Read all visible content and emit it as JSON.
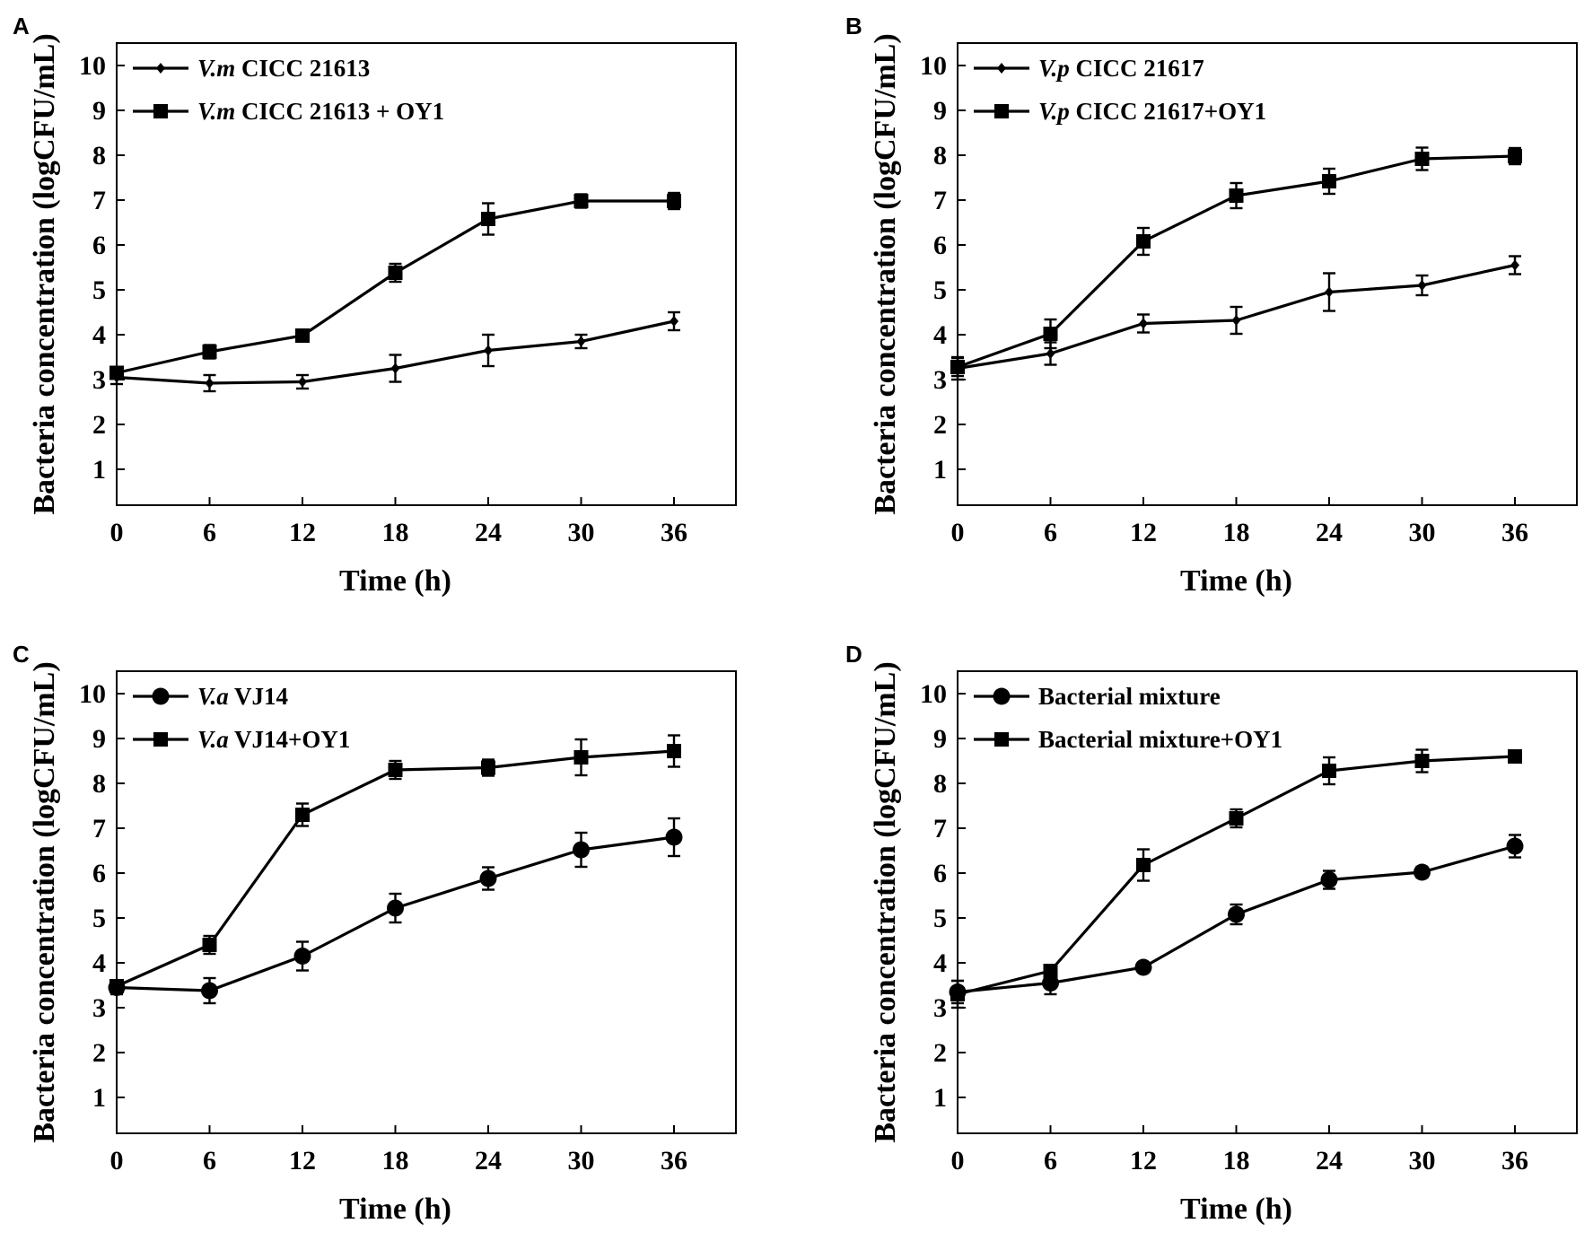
{
  "figure": {
    "background": "#ffffff",
    "ink": "#000000"
  },
  "chart_data": [
    {
      "panel": "A",
      "type": "line",
      "xlabel": "Time (h)",
      "ylabel": "Bacteria concentration  (logCFU/mL)",
      "x": [
        0,
        6,
        12,
        18,
        24,
        30,
        36
      ],
      "xticks": [
        "0",
        "6",
        "12",
        "18",
        "24",
        "30",
        "36"
      ],
      "yticks": [
        "1",
        "2",
        "3",
        "4",
        "5",
        "6",
        "7",
        "8",
        "9",
        "10"
      ],
      "xlim": [
        0,
        40
      ],
      "ylim": [
        0.2,
        10.5
      ],
      "legend_position": "top-left",
      "series": [
        {
          "name_italic": "V.m",
          "name_rest": " CICC 21613",
          "marker": "small-diamond",
          "values": [
            3.05,
            2.92,
            2.95,
            3.25,
            3.65,
            3.85,
            4.3
          ],
          "errors": [
            0.15,
            0.18,
            0.15,
            0.3,
            0.35,
            0.15,
            0.2
          ]
        },
        {
          "name_italic": "V.m",
          "name_rest": " CICC 21613 + OY1",
          "marker": "square",
          "values": [
            3.15,
            3.62,
            3.98,
            5.38,
            6.58,
            6.98,
            6.98
          ],
          "errors": [
            0.12,
            0.15,
            0.08,
            0.2,
            0.35,
            0.15,
            0.18
          ]
        }
      ]
    },
    {
      "panel": "B",
      "type": "line",
      "xlabel": "Time (h)",
      "ylabel": "Bacteria concentration  (logCFU/mL)",
      "x": [
        0,
        6,
        12,
        18,
        24,
        30,
        36
      ],
      "xticks": [
        "0",
        "6",
        "12",
        "18",
        "24",
        "30",
        "36"
      ],
      "yticks": [
        "1",
        "2",
        "3",
        "4",
        "5",
        "6",
        "7",
        "8",
        "9",
        "10"
      ],
      "xlim": [
        0,
        40
      ],
      "ylim": [
        0.2,
        10.5
      ],
      "legend_position": "top-left",
      "series": [
        {
          "name_italic": "V.p",
          "name_rest": " CICC 21617",
          "marker": "small-diamond",
          "values": [
            3.25,
            3.58,
            4.25,
            4.32,
            4.95,
            5.1,
            5.55
          ],
          "errors": [
            0.25,
            0.25,
            0.2,
            0.3,
            0.42,
            0.22,
            0.2
          ]
        },
        {
          "name_italic": "V.p",
          "name_rest": " CICC 21617+OY1",
          "marker": "square",
          "values": [
            3.28,
            4.02,
            6.08,
            7.1,
            7.42,
            7.92,
            7.98
          ],
          "errors": [
            0.2,
            0.32,
            0.3,
            0.28,
            0.28,
            0.25,
            0.18
          ]
        }
      ]
    },
    {
      "panel": "C",
      "type": "line",
      "xlabel": "Time (h)",
      "ylabel": "Bacteria concentration  (logCFU/mL)",
      "x": [
        0,
        6,
        12,
        18,
        24,
        30,
        36
      ],
      "xticks": [
        "0",
        "6",
        "12",
        "18",
        "24",
        "30",
        "36"
      ],
      "yticks": [
        "1",
        "2",
        "3",
        "4",
        "5",
        "6",
        "7",
        "8",
        "9",
        "10"
      ],
      "xlim": [
        0,
        40
      ],
      "ylim": [
        0.2,
        10.5
      ],
      "legend_position": "top-left",
      "series": [
        {
          "name_italic": "V.a",
          "name_rest": " VJ14",
          "marker": "circle",
          "values": [
            3.45,
            3.38,
            4.15,
            5.22,
            5.88,
            6.52,
            6.8
          ],
          "errors": [
            0.15,
            0.28,
            0.32,
            0.32,
            0.25,
            0.38,
            0.42
          ]
        },
        {
          "name_italic": "V.a",
          "name_rest": " VJ14+OY1",
          "marker": "square",
          "values": [
            3.48,
            4.4,
            7.3,
            8.3,
            8.35,
            8.58,
            8.72
          ],
          "errors": [
            0.12,
            0.2,
            0.25,
            0.2,
            0.18,
            0.4,
            0.35
          ]
        }
      ]
    },
    {
      "panel": "D",
      "type": "line",
      "xlabel": "Time (h)",
      "ylabel": "Bacteria concentration  (logCFU/mL)",
      "x": [
        0,
        6,
        12,
        18,
        24,
        30,
        36
      ],
      "xticks": [
        "0",
        "6",
        "12",
        "18",
        "24",
        "30",
        "36"
      ],
      "yticks": [
        "1",
        "2",
        "3",
        "4",
        "5",
        "6",
        "7",
        "8",
        "9",
        "10"
      ],
      "xlim": [
        0,
        40
      ],
      "ylim": [
        0.2,
        10.5
      ],
      "legend_position": "top-left",
      "series": [
        {
          "name_italic": "",
          "name_rest": "Bacterial mixture",
          "marker": "circle",
          "values": [
            3.35,
            3.55,
            3.9,
            5.08,
            5.85,
            6.02,
            6.6
          ],
          "errors": [
            0.25,
            0.25,
            0.1,
            0.22,
            0.2,
            0.12,
            0.25
          ]
        },
        {
          "name_italic": "",
          "name_rest": "Bacterial mixture+OY1",
          "marker": "square",
          "values": [
            3.3,
            3.82,
            6.18,
            7.22,
            8.28,
            8.5,
            8.6
          ],
          "errors": [
            0.3,
            0.1,
            0.35,
            0.2,
            0.3,
            0.25,
            0.08
          ]
        }
      ]
    }
  ]
}
